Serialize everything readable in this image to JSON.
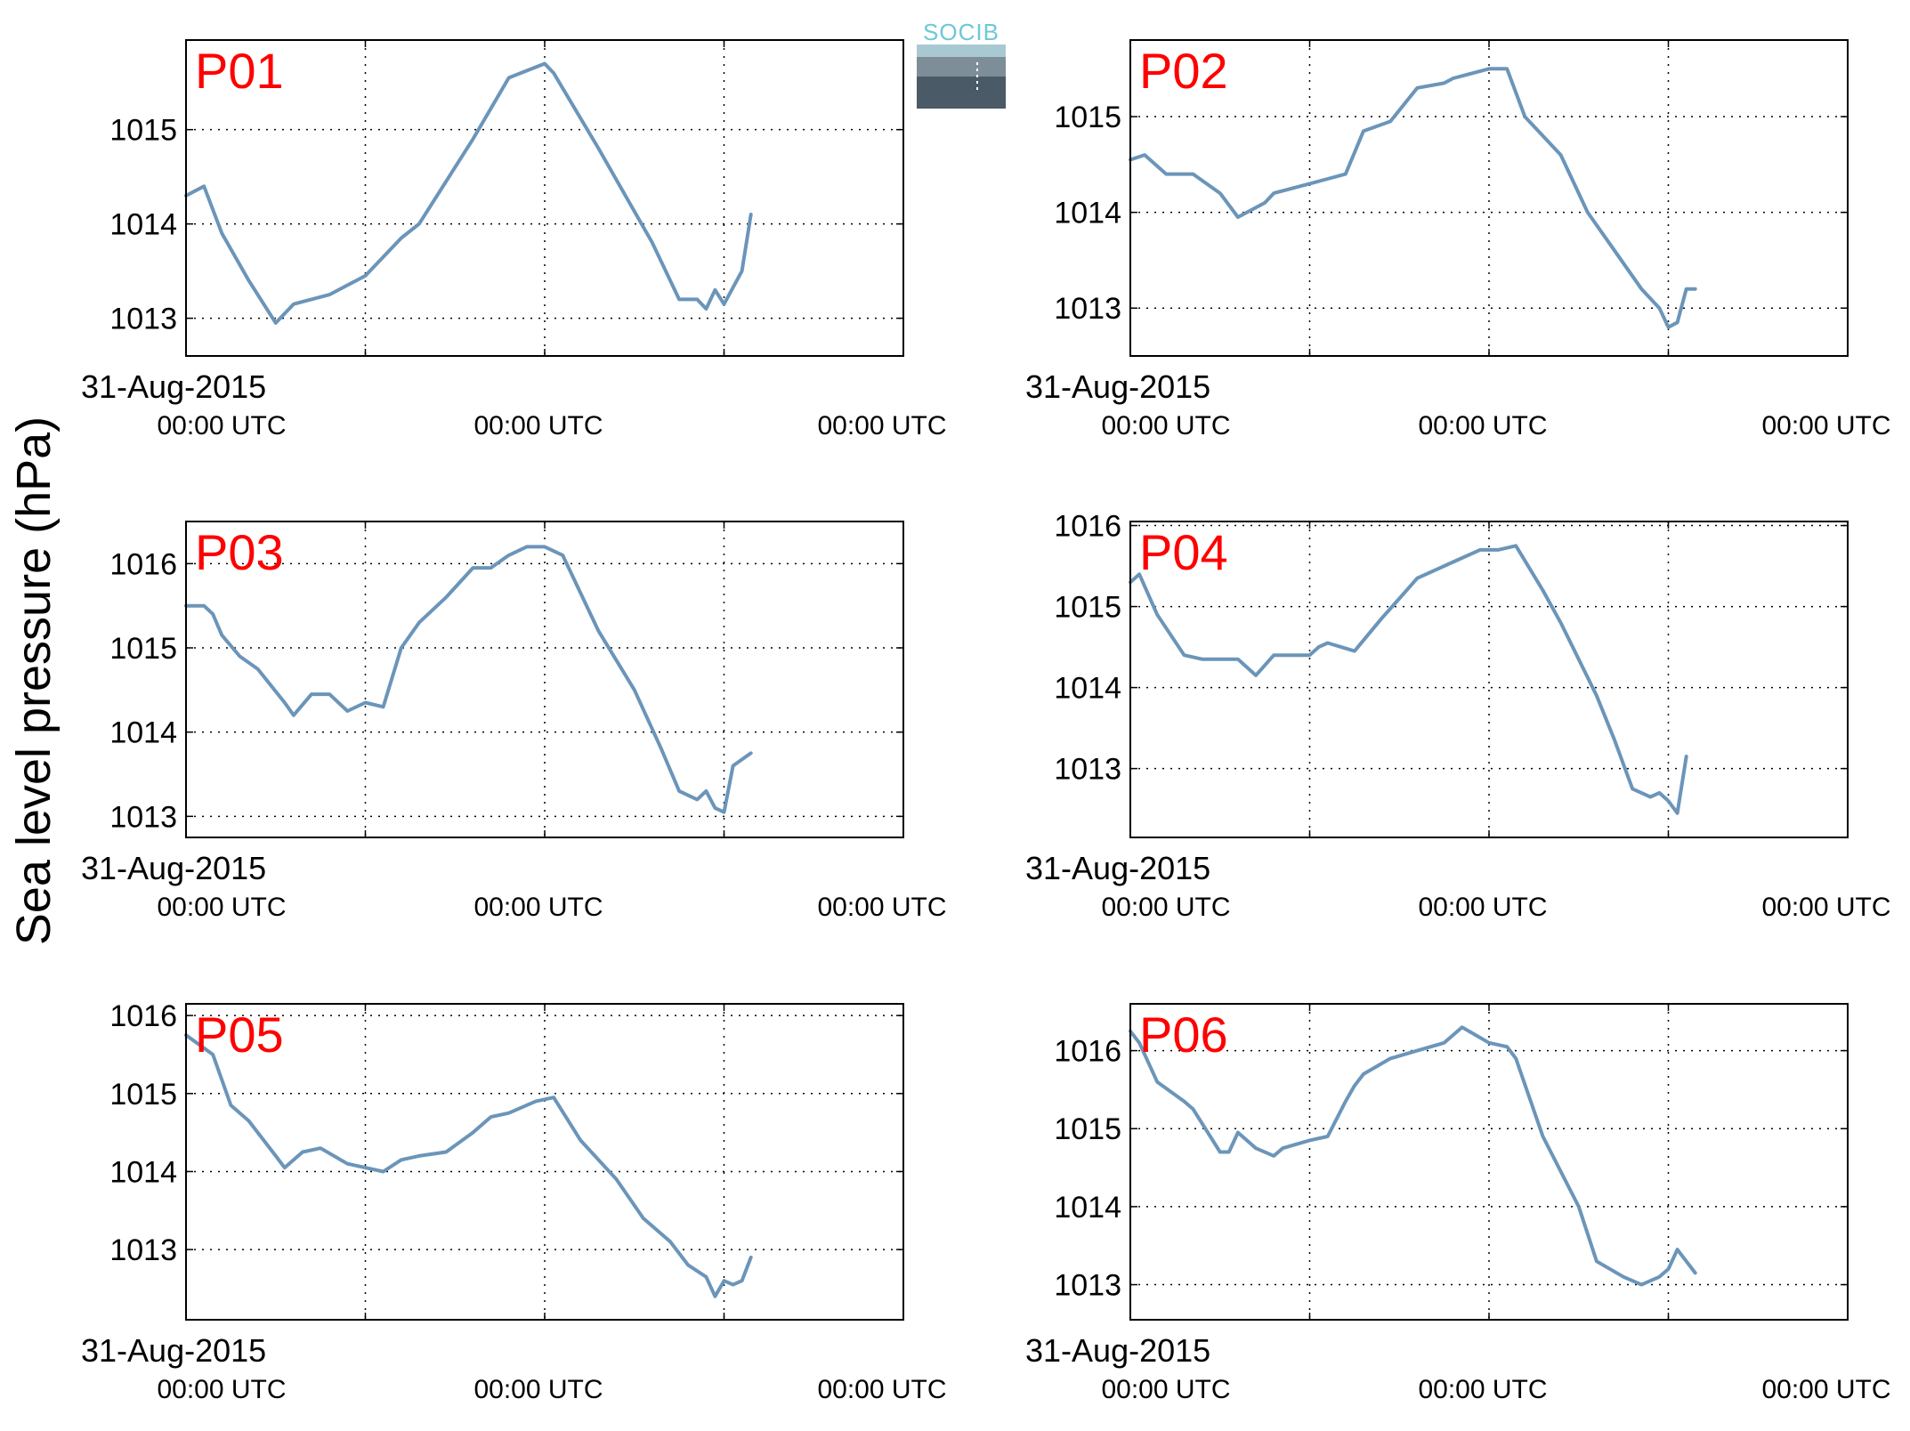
{
  "figure": {
    "ylabel": "Sea level pressure (hPa)",
    "date_label": "31-Aug-2015",
    "x_tick_labels": [
      "00:00 UTC",
      "00:00 UTC",
      "00:00 UTC"
    ],
    "logo_text": "SOCIB",
    "line_color": "#6b95b9",
    "label_color": "#ff0000"
  },
  "chart_data": [
    {
      "type": "line",
      "label": "P01",
      "ylim": [
        1012.6,
        1015.95
      ],
      "yticks": [
        1013,
        1014,
        1015
      ],
      "xlim": [
        0,
        4
      ],
      "grid": true,
      "x": [
        0,
        0.1,
        0.2,
        0.35,
        0.5,
        0.6,
        0.8,
        1.0,
        1.2,
        1.3,
        1.6,
        1.8,
        2.0,
        2.05,
        2.3,
        2.6,
        2.75,
        2.85,
        2.9,
        2.95,
        3.0,
        3.1,
        3.15
      ],
      "y": [
        1014.3,
        1014.4,
        1013.9,
        1013.4,
        1012.95,
        1013.15,
        1013.25,
        1013.45,
        1013.85,
        1014.0,
        1014.9,
        1015.55,
        1015.7,
        1015.6,
        1014.8,
        1013.8,
        1013.2,
        1013.2,
        1013.1,
        1013.3,
        1013.15,
        1013.5,
        1014.1
      ]
    },
    {
      "type": "line",
      "label": "P02",
      "ylim": [
        1012.5,
        1015.8
      ],
      "yticks": [
        1013,
        1014,
        1015
      ],
      "xlim": [
        0,
        4
      ],
      "grid": true,
      "x": [
        0,
        0.08,
        0.2,
        0.35,
        0.5,
        0.6,
        0.75,
        0.8,
        1.0,
        1.1,
        1.2,
        1.3,
        1.45,
        1.6,
        1.75,
        1.8,
        2.0,
        2.1,
        2.2,
        2.4,
        2.55,
        2.7,
        2.85,
        2.95,
        3.0,
        3.05,
        3.1,
        3.15
      ],
      "y": [
        1014.55,
        1014.6,
        1014.4,
        1014.4,
        1014.2,
        1013.95,
        1014.1,
        1014.2,
        1014.3,
        1014.35,
        1014.4,
        1014.85,
        1014.95,
        1015.3,
        1015.35,
        1015.4,
        1015.5,
        1015.5,
        1015.0,
        1014.6,
        1014.0,
        1013.6,
        1013.2,
        1013.0,
        1012.8,
        1012.85,
        1013.2,
        1013.2
      ]
    },
    {
      "type": "line",
      "label": "P03",
      "ylim": [
        1012.75,
        1016.5
      ],
      "yticks": [
        1013,
        1014,
        1015,
        1016
      ],
      "xlim": [
        0,
        4
      ],
      "grid": true,
      "x": [
        0,
        0.1,
        0.15,
        0.2,
        0.3,
        0.4,
        0.55,
        0.6,
        0.7,
        0.8,
        0.9,
        1.0,
        1.1,
        1.2,
        1.3,
        1.45,
        1.6,
        1.7,
        1.8,
        1.9,
        2.0,
        2.1,
        2.3,
        2.5,
        2.65,
        2.75,
        2.85,
        2.9,
        2.95,
        3.0,
        3.05,
        3.15
      ],
      "y": [
        1015.5,
        1015.5,
        1015.4,
        1015.15,
        1014.9,
        1014.75,
        1014.35,
        1014.2,
        1014.45,
        1014.45,
        1014.25,
        1014.35,
        1014.3,
        1015.0,
        1015.3,
        1015.6,
        1015.95,
        1015.95,
        1016.1,
        1016.2,
        1016.2,
        1016.1,
        1015.2,
        1014.5,
        1013.8,
        1013.3,
        1013.2,
        1013.3,
        1013.1,
        1013.05,
        1013.6,
        1013.75
      ]
    },
    {
      "type": "line",
      "label": "P04",
      "ylim": [
        1012.15,
        1016.05
      ],
      "yticks": [
        1013,
        1014,
        1015,
        1016
      ],
      "xlim": [
        0,
        4
      ],
      "grid": true,
      "x": [
        0,
        0.05,
        0.15,
        0.3,
        0.4,
        0.6,
        0.7,
        0.8,
        1.0,
        1.05,
        1.1,
        1.25,
        1.4,
        1.5,
        1.6,
        1.8,
        1.95,
        2.05,
        2.15,
        2.3,
        2.4,
        2.6,
        2.7,
        2.8,
        2.9,
        2.95,
        3.0,
        3.05,
        3.1
      ],
      "y": [
        1015.3,
        1015.4,
        1014.9,
        1014.4,
        1014.35,
        1014.35,
        1014.15,
        1014.4,
        1014.4,
        1014.5,
        1014.55,
        1014.45,
        1014.85,
        1015.1,
        1015.35,
        1015.55,
        1015.7,
        1015.7,
        1015.75,
        1015.2,
        1014.8,
        1013.9,
        1013.35,
        1012.75,
        1012.65,
        1012.7,
        1012.6,
        1012.45,
        1013.15
      ]
    },
    {
      "type": "line",
      "label": "P05",
      "ylim": [
        1012.1,
        1016.15
      ],
      "yticks": [
        1013,
        1014,
        1015,
        1016
      ],
      "xlim": [
        0,
        4
      ],
      "grid": true,
      "x": [
        0,
        0.15,
        0.25,
        0.35,
        0.5,
        0.55,
        0.65,
        0.75,
        0.9,
        1.0,
        1.1,
        1.2,
        1.3,
        1.45,
        1.6,
        1.7,
        1.8,
        1.95,
        2.05,
        2.2,
        2.4,
        2.55,
        2.7,
        2.8,
        2.9,
        2.95,
        3.0,
        3.05,
        3.1,
        3.15
      ],
      "y": [
        1015.75,
        1015.5,
        1014.85,
        1014.65,
        1014.2,
        1014.05,
        1014.25,
        1014.3,
        1014.1,
        1014.05,
        1014.0,
        1014.15,
        1014.2,
        1014.25,
        1014.5,
        1014.7,
        1014.75,
        1014.9,
        1014.95,
        1014.4,
        1013.9,
        1013.4,
        1013.1,
        1012.8,
        1012.65,
        1012.4,
        1012.6,
        1012.55,
        1012.6,
        1012.9
      ]
    },
    {
      "type": "line",
      "label": "P06",
      "ylim": [
        1012.55,
        1016.6
      ],
      "yticks": [
        1013,
        1014,
        1015,
        1016
      ],
      "xlim": [
        0,
        4
      ],
      "grid": true,
      "x": [
        0,
        0.05,
        0.15,
        0.3,
        0.35,
        0.5,
        0.55,
        0.6,
        0.7,
        0.8,
        0.85,
        1.0,
        1.1,
        1.2,
        1.25,
        1.3,
        1.45,
        1.6,
        1.75,
        1.85,
        2.0,
        2.1,
        2.15,
        2.3,
        2.5,
        2.6,
        2.75,
        2.85,
        2.95,
        3.0,
        3.05,
        3.1,
        3.15
      ],
      "y": [
        1016.25,
        1016.1,
        1015.6,
        1015.35,
        1015.25,
        1014.7,
        1014.7,
        1014.95,
        1014.75,
        1014.65,
        1014.75,
        1014.85,
        1014.9,
        1015.35,
        1015.55,
        1015.7,
        1015.9,
        1016.0,
        1016.1,
        1016.3,
        1016.1,
        1016.05,
        1015.9,
        1014.9,
        1014.0,
        1013.3,
        1013.1,
        1013.0,
        1013.1,
        1013.2,
        1013.45,
        1013.3,
        1013.15
      ]
    }
  ]
}
